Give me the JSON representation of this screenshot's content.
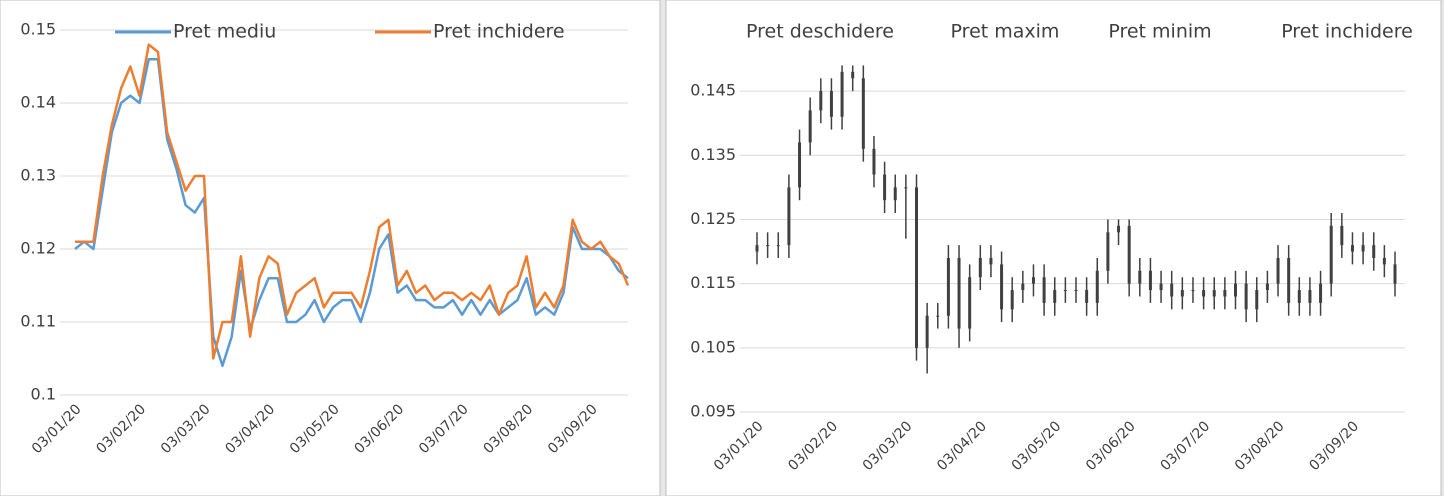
{
  "chart_data": [
    {
      "type": "line",
      "categories": [
        "03/01/20",
        null,
        null,
        null,
        null,
        null,
        null,
        "03/02/20",
        null,
        null,
        null,
        null,
        null,
        null,
        "03/03/20",
        null,
        null,
        null,
        null,
        null,
        null,
        "03/04/20",
        null,
        null,
        null,
        null,
        null,
        null,
        "03/05/20",
        null,
        null,
        null,
        null,
        null,
        null,
        "03/06/20",
        null,
        null,
        null,
        null,
        null,
        null,
        "03/07/20",
        null,
        null,
        null,
        null,
        null,
        null,
        "03/08/20",
        null,
        null,
        null,
        null,
        null,
        null,
        "03/09/20",
        null,
        null,
        null,
        null
      ],
      "ylim": [
        0.1,
        0.15
      ],
      "yticks": [
        0.1,
        0.11,
        0.12,
        0.13,
        0.14,
        0.15
      ],
      "grid": true,
      "series": [
        {
          "name": "Pret mediu",
          "color": "#5b9bd5",
          "values": [
            0.12,
            0.121,
            0.12,
            0.128,
            0.136,
            0.14,
            0.141,
            0.14,
            0.146,
            0.146,
            0.135,
            0.131,
            0.126,
            0.125,
            0.127,
            0.108,
            0.104,
            0.108,
            0.117,
            0.109,
            0.113,
            0.116,
            0.116,
            0.11,
            0.11,
            0.111,
            0.113,
            0.11,
            0.112,
            0.113,
            0.113,
            0.11,
            0.114,
            0.12,
            0.122,
            0.114,
            0.115,
            0.113,
            0.113,
            0.112,
            0.112,
            0.113,
            0.111,
            0.113,
            0.111,
            0.113,
            0.111,
            0.112,
            0.113,
            0.116,
            0.111,
            0.112,
            0.111,
            0.114,
            0.123,
            0.12,
            0.12,
            0.12,
            0.119,
            0.117,
            0.116
          ]
        },
        {
          "name": "Pret inchidere",
          "color": "#ed7d31",
          "values": [
            0.121,
            0.121,
            0.121,
            0.13,
            0.137,
            0.142,
            0.145,
            0.141,
            0.148,
            0.147,
            0.136,
            0.132,
            0.128,
            0.13,
            0.13,
            0.105,
            0.11,
            0.11,
            0.119,
            0.108,
            0.116,
            0.119,
            0.118,
            0.111,
            0.114,
            0.115,
            0.116,
            0.112,
            0.114,
            0.114,
            0.114,
            0.112,
            0.117,
            0.123,
            0.124,
            0.115,
            0.117,
            0.114,
            0.115,
            0.113,
            0.114,
            0.114,
            0.113,
            0.114,
            0.113,
            0.115,
            0.111,
            0.114,
            0.115,
            0.119,
            0.112,
            0.114,
            0.112,
            0.115,
            0.124,
            0.121,
            0.12,
            0.121,
            0.119,
            0.118,
            0.115
          ]
        }
      ]
    },
    {
      "type": "candlestick",
      "color": "#404040",
      "categories": [
        "03/01/20",
        null,
        null,
        null,
        null,
        null,
        null,
        "03/02/20",
        null,
        null,
        null,
        null,
        null,
        null,
        "03/03/20",
        null,
        null,
        null,
        null,
        null,
        null,
        "03/04/20",
        null,
        null,
        null,
        null,
        null,
        null,
        "03/05/20",
        null,
        null,
        null,
        null,
        null,
        null,
        "03/06/20",
        null,
        null,
        null,
        null,
        null,
        null,
        "03/07/20",
        null,
        null,
        null,
        null,
        null,
        null,
        "03/08/20",
        null,
        null,
        null,
        null,
        null,
        null,
        "03/09/20",
        null,
        null,
        null,
        null
      ],
      "ylim": [
        0.095,
        0.15
      ],
      "yticks": [
        0.095,
        0.105,
        0.115,
        0.125,
        0.135,
        0.145
      ],
      "grid": true,
      "series": [
        {
          "name": "Pret deschidere",
          "values": [
            0.12,
            0.121,
            0.121,
            0.121,
            0.13,
            0.137,
            0.142,
            0.145,
            0.141,
            0.148,
            0.147,
            0.136,
            0.132,
            0.128,
            0.13,
            0.13,
            0.105,
            0.11,
            0.11,
            0.119,
            0.108,
            0.116,
            0.119,
            0.118,
            0.111,
            0.114,
            0.115,
            0.116,
            0.112,
            0.114,
            0.114,
            0.114,
            0.112,
            0.117,
            0.123,
            0.124,
            0.115,
            0.117,
            0.114,
            0.115,
            0.113,
            0.114,
            0.114,
            0.113,
            0.114,
            0.113,
            0.115,
            0.111,
            0.114,
            0.115,
            0.119,
            0.112,
            0.114,
            0.112,
            0.115,
            0.124,
            0.121,
            0.12,
            0.121,
            0.119,
            0.118
          ]
        },
        {
          "name": "Pret maxim",
          "values": [
            0.123,
            0.123,
            0.123,
            0.132,
            0.139,
            0.144,
            0.147,
            0.147,
            0.149,
            0.149,
            0.149,
            0.138,
            0.134,
            0.132,
            0.132,
            0.132,
            0.112,
            0.112,
            0.121,
            0.121,
            0.118,
            0.121,
            0.121,
            0.12,
            0.116,
            0.117,
            0.118,
            0.118,
            0.116,
            0.116,
            0.116,
            0.116,
            0.119,
            0.125,
            0.125,
            0.125,
            0.119,
            0.119,
            0.117,
            0.117,
            0.116,
            0.116,
            0.116,
            0.116,
            0.116,
            0.117,
            0.117,
            0.116,
            0.117,
            0.121,
            0.121,
            0.116,
            0.116,
            0.117,
            0.126,
            0.126,
            0.123,
            0.123,
            0.123,
            0.121,
            0.12
          ]
        },
        {
          "name": "Pret minim",
          "values": [
            0.118,
            0.119,
            0.119,
            0.119,
            0.128,
            0.135,
            0.14,
            0.139,
            0.139,
            0.145,
            0.134,
            0.13,
            0.126,
            0.126,
            0.122,
            0.103,
            0.101,
            0.108,
            0.108,
            0.105,
            0.106,
            0.114,
            0.116,
            0.109,
            0.109,
            0.112,
            0.113,
            0.11,
            0.11,
            0.112,
            0.112,
            0.11,
            0.11,
            0.115,
            0.121,
            0.113,
            0.113,
            0.112,
            0.112,
            0.111,
            0.111,
            0.112,
            0.111,
            0.111,
            0.111,
            0.111,
            0.109,
            0.109,
            0.112,
            0.113,
            0.11,
            0.11,
            0.11,
            0.11,
            0.113,
            0.119,
            0.118,
            0.118,
            0.117,
            0.116,
            0.113
          ]
        },
        {
          "name": "Pret inchidere",
          "values": [
            0.121,
            0.121,
            0.121,
            0.13,
            0.137,
            0.142,
            0.145,
            0.141,
            0.148,
            0.147,
            0.136,
            0.132,
            0.128,
            0.13,
            0.13,
            0.105,
            0.11,
            0.11,
            0.119,
            0.108,
            0.116,
            0.119,
            0.118,
            0.111,
            0.114,
            0.115,
            0.116,
            0.112,
            0.114,
            0.114,
            0.114,
            0.112,
            0.117,
            0.123,
            0.124,
            0.115,
            0.117,
            0.114,
            0.115,
            0.113,
            0.114,
            0.114,
            0.113,
            0.114,
            0.113,
            0.115,
            0.111,
            0.114,
            0.115,
            0.119,
            0.112,
            0.114,
            0.112,
            0.115,
            0.124,
            0.121,
            0.12,
            0.121,
            0.119,
            0.118,
            0.115
          ]
        }
      ]
    }
  ]
}
